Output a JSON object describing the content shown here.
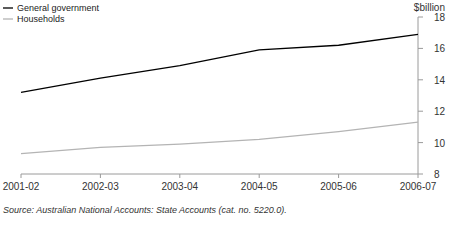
{
  "chart_data": {
    "type": "line",
    "y_label": "$billion",
    "source": "Source: Australian National Accounts: State Accounts (cat. no. 5220.0).",
    "categories": [
      "2001-02",
      "2002-03",
      "2003-04",
      "2004-05",
      "2005-06",
      "2006-07"
    ],
    "series": [
      {
        "name": "General government",
        "color": "#000000",
        "values": [
          13.2,
          14.1,
          14.9,
          15.9,
          16.2,
          16.9
        ]
      },
      {
        "name": "Households",
        "color": "#b4b4b4",
        "values": [
          9.3,
          9.7,
          9.9,
          10.2,
          10.7,
          11.3
        ]
      }
    ],
    "ylim": [
      8,
      18
    ],
    "yticks": [
      8,
      10,
      12,
      14,
      16,
      18
    ],
    "grid": false,
    "legend": "top-left"
  }
}
